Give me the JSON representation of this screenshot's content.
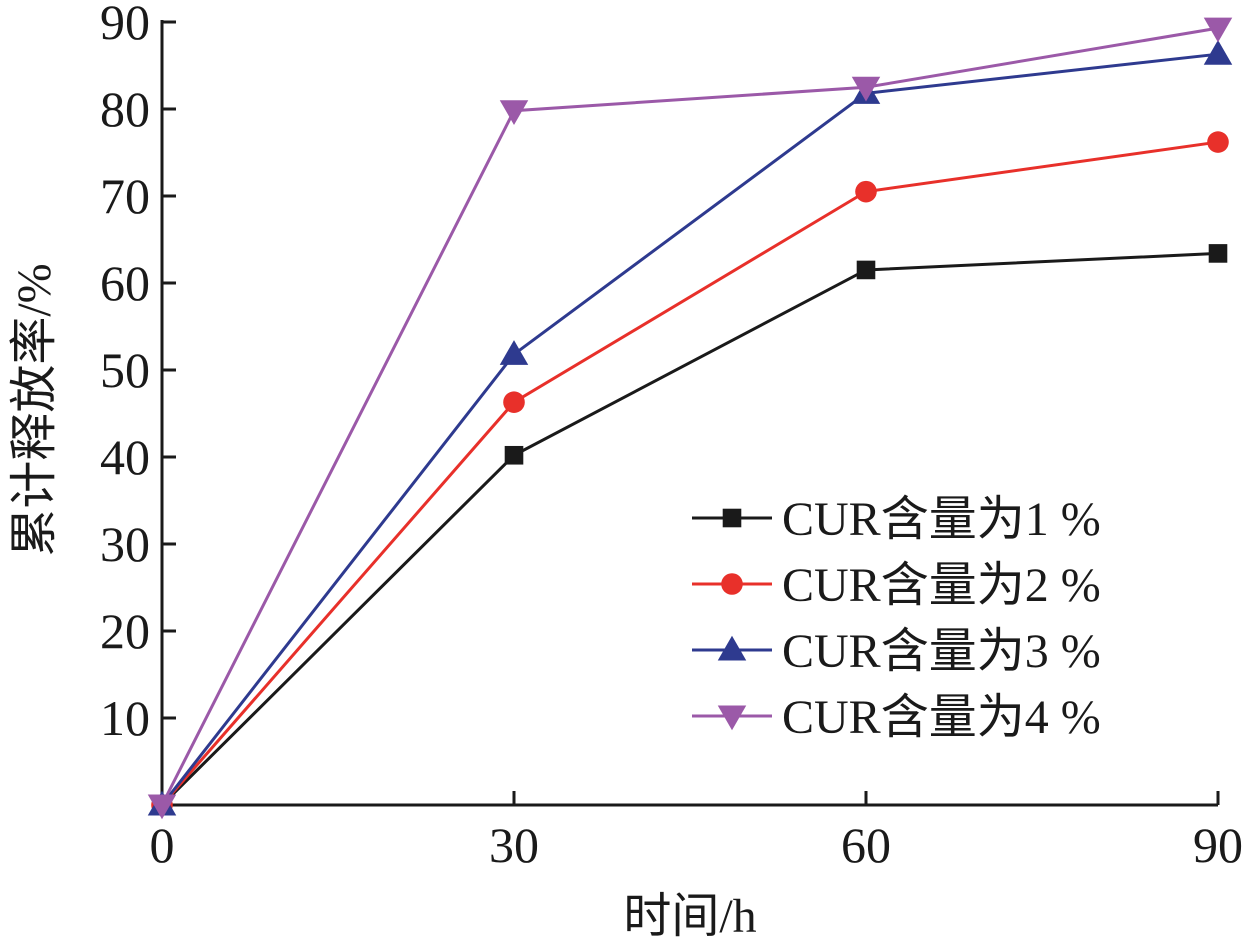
{
  "chart_data": {
    "type": "line",
    "xlabel": "时间/h",
    "ylabel": "累计释放率/%",
    "x": [
      0,
      30,
      60,
      90
    ],
    "xlim": [
      0,
      90
    ],
    "ylim": [
      0,
      90
    ],
    "xticks": [
      "0",
      "30",
      "60",
      "90"
    ],
    "yticks": [
      "10",
      "20",
      "30",
      "40",
      "50",
      "60",
      "70",
      "80",
      "90"
    ],
    "grid": false,
    "legend_position": "bottom-right",
    "series": [
      {
        "name": "CUR含量为1 %",
        "values": [
          0,
          40.2,
          61.5,
          63.4
        ],
        "color": "#1a1a1a",
        "marker": "square"
      },
      {
        "name": "CUR含量为2 %",
        "values": [
          0,
          46.3,
          70.5,
          76.2
        ],
        "color": "#e8302a",
        "marker": "circle"
      },
      {
        "name": "CUR含量为3 %",
        "values": [
          0,
          51.8,
          81.8,
          86.3
        ],
        "color": "#2e3a8f",
        "marker": "triangle-up"
      },
      {
        "name": "CUR含量为4 %",
        "values": [
          0,
          79.8,
          82.5,
          89.3
        ],
        "color": "#9b59a8",
        "marker": "triangle-down"
      }
    ]
  }
}
